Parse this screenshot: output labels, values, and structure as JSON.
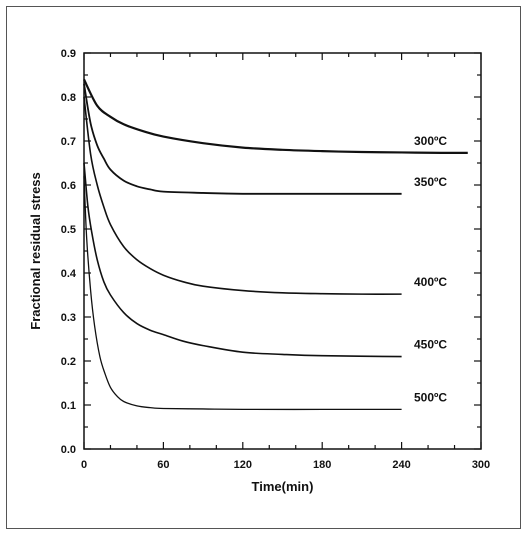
{
  "chart_data": {
    "type": "line",
    "xlabel": "Time(min)",
    "ylabel": "Fractional residual stress",
    "xlim": [
      0,
      300
    ],
    "ylim": [
      0.0,
      0.9
    ],
    "xticks": [
      0,
      60,
      120,
      180,
      240,
      300
    ],
    "xtick_labels": [
      "0",
      "60",
      "120",
      "180",
      "240",
      "300"
    ],
    "yticks": [
      0.0,
      0.1,
      0.2,
      0.3,
      0.4,
      0.5,
      0.6,
      0.7,
      0.8,
      0.9
    ],
    "ytick_labels": [
      "0.0",
      "0.1",
      "0.2",
      "0.3",
      "0.4",
      "0.5",
      "0.6",
      "0.7",
      "0.8",
      "0.9"
    ],
    "grid": false,
    "legend": "none",
    "series": [
      {
        "name": "300ºC",
        "x": [
          0,
          10,
          20,
          30,
          45,
          60,
          90,
          120,
          150,
          180,
          210,
          240,
          270,
          290
        ],
        "y": [
          0.84,
          0.78,
          0.755,
          0.738,
          0.722,
          0.71,
          0.695,
          0.685,
          0.68,
          0.677,
          0.675,
          0.674,
          0.673,
          0.673
        ]
      },
      {
        "name": "350ºC",
        "x": [
          0,
          5,
          10,
          15,
          20,
          30,
          40,
          50,
          60,
          90,
          120,
          180,
          240
        ],
        "y": [
          0.83,
          0.74,
          0.69,
          0.66,
          0.635,
          0.61,
          0.597,
          0.59,
          0.585,
          0.582,
          0.58,
          0.58,
          0.58
        ]
      },
      {
        "name": "400ºC",
        "x": [
          0,
          5,
          10,
          15,
          20,
          30,
          40,
          50,
          60,
          75,
          90,
          120,
          150,
          180,
          210,
          240
        ],
        "y": [
          0.8,
          0.67,
          0.6,
          0.55,
          0.51,
          0.46,
          0.43,
          0.41,
          0.395,
          0.38,
          0.37,
          0.36,
          0.355,
          0.353,
          0.352,
          0.352
        ]
      },
      {
        "name": "450ºC",
        "x": [
          0,
          3,
          6,
          10,
          15,
          20,
          30,
          40,
          50,
          60,
          75,
          90,
          120,
          150,
          180,
          240
        ],
        "y": [
          0.65,
          0.55,
          0.49,
          0.43,
          0.38,
          0.35,
          0.31,
          0.285,
          0.27,
          0.26,
          0.245,
          0.235,
          0.22,
          0.215,
          0.212,
          0.21
        ]
      },
      {
        "name": "500ºC",
        "x": [
          0,
          2,
          5,
          8,
          12,
          16,
          20,
          25,
          30,
          40,
          50,
          60,
          90,
          120,
          180,
          240
        ],
        "y": [
          0.62,
          0.48,
          0.36,
          0.28,
          0.21,
          0.17,
          0.14,
          0.12,
          0.108,
          0.098,
          0.094,
          0.092,
          0.091,
          0.09,
          0.09,
          0.09
        ]
      }
    ]
  }
}
